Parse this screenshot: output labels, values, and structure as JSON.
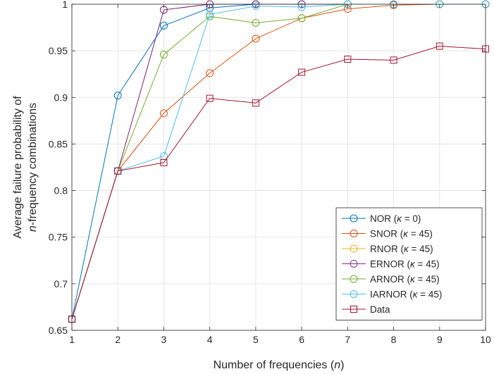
{
  "chart_data": {
    "type": "line",
    "xlabel": "Number of frequencies (n)",
    "ylabel_line1": "Average failure probability of",
    "ylabel_line2": "n-frequency combinations",
    "xlim": [
      1,
      10
    ],
    "ylim": [
      0.65,
      1
    ],
    "x_ticks": [
      1,
      2,
      3,
      4,
      5,
      6,
      7,
      8,
      9,
      10
    ],
    "y_ticks": [
      0.65,
      0.7,
      0.75,
      0.8,
      0.85,
      0.9,
      0.95,
      1
    ],
    "grid": true,
    "legend_position": "bottom-right",
    "x": [
      1,
      2,
      3,
      4,
      5,
      6,
      7,
      8,
      9,
      10
    ],
    "series": [
      {
        "name": "NOR (κ = 0)",
        "color": "#0072BD",
        "marker": "circle",
        "values": [
          0.662,
          0.902,
          0.977,
          0.996,
          1.0,
          1.0,
          1.0,
          1.0,
          1.0,
          1.0
        ]
      },
      {
        "name": "SNOR (κ = 45)",
        "color": "#D95319",
        "marker": "circle",
        "values": [
          0.662,
          0.821,
          0.883,
          0.926,
          0.963,
          0.985,
          0.995,
          0.999,
          1.0,
          1.0
        ]
      },
      {
        "name": "RNOR (κ = 45)",
        "color": "#EDB120",
        "marker": "circle",
        "values": [
          0.662,
          0.821,
          0.994,
          1.0,
          1.0,
          1.0,
          1.0,
          1.0,
          1.0,
          1.0
        ]
      },
      {
        "name": "ERNOR (κ = 45)",
        "color": "#7E2F8E",
        "marker": "circle",
        "values": [
          0.662,
          0.821,
          0.994,
          1.0,
          1.0,
          1.0,
          1.0,
          1.0,
          1.0,
          1.0
        ]
      },
      {
        "name": "ARNOR (κ = 45)",
        "color": "#77AC30",
        "marker": "circle",
        "values": [
          0.662,
          0.821,
          0.946,
          0.987,
          0.98,
          0.985,
          1.0,
          1.0,
          1.0,
          1.0
        ]
      },
      {
        "name": "IARNOR (κ = 45)",
        "color": "#4DBEEE",
        "marker": "circle",
        "values": [
          0.662,
          0.821,
          0.837,
          0.989,
          0.998,
          0.997,
          1.0,
          1.0,
          1.0,
          1.0
        ]
      },
      {
        "name": "Data",
        "color": "#A2142F",
        "marker": "square",
        "values": [
          0.662,
          0.821,
          0.83,
          0.899,
          0.894,
          0.927,
          0.941,
          0.94,
          0.955,
          0.952
        ]
      }
    ]
  }
}
